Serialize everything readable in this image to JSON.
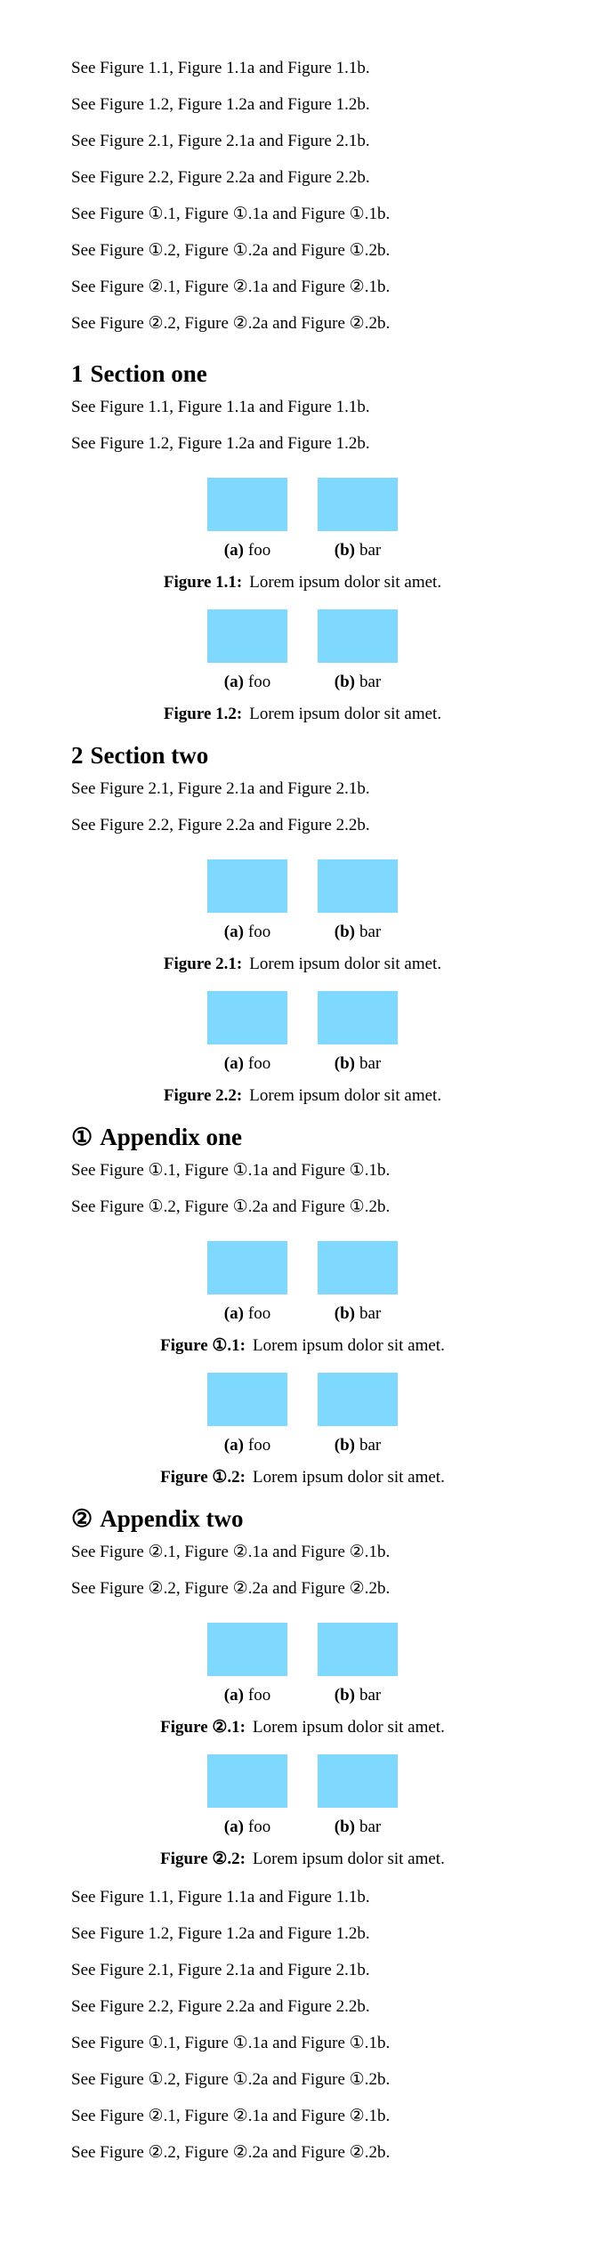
{
  "intro_refs": [
    "See Figure 1.1, Figure 1.1a and Figure 1.1b.",
    "See Figure 1.2, Figure 1.2a and Figure 1.2b.",
    "See Figure 2.1, Figure 2.1a and Figure 2.1b.",
    "See Figure 2.2, Figure 2.2a and Figure 2.2b.",
    "See Figure ①.1, Figure ①.1a and Figure ①.1b.",
    "See Figure ①.2, Figure ①.2a and Figure ①.2b.",
    "See Figure ②.1, Figure ②.1a and Figure ②.1b.",
    "See Figure ②.2, Figure ②.2a and Figure ②.2b."
  ],
  "sections": [
    {
      "num": "1",
      "title": "Section one",
      "refs": [
        "See Figure 1.1, Figure 1.1a and Figure 1.1b.",
        "See Figure 1.2, Figure 1.2a and Figure 1.2b."
      ],
      "figures": [
        {
          "label": "Figure 1.1:",
          "caption": "Lorem ipsum dolor sit amet.",
          "sub_a_label": "(a)",
          "sub_a_text": "foo",
          "sub_b_label": "(b)",
          "sub_b_text": "bar"
        },
        {
          "label": "Figure 1.2:",
          "caption": "Lorem ipsum dolor sit amet.",
          "sub_a_label": "(a)",
          "sub_a_text": "foo",
          "sub_b_label": "(b)",
          "sub_b_text": "bar"
        }
      ]
    },
    {
      "num": "2",
      "title": "Section two",
      "refs": [
        "See Figure 2.1, Figure 2.1a and Figure 2.1b.",
        "See Figure 2.2, Figure 2.2a and Figure 2.2b."
      ],
      "figures": [
        {
          "label": "Figure 2.1:",
          "caption": "Lorem ipsum dolor sit amet.",
          "sub_a_label": "(a)",
          "sub_a_text": "foo",
          "sub_b_label": "(b)",
          "sub_b_text": "bar"
        },
        {
          "label": "Figure 2.2:",
          "caption": "Lorem ipsum dolor sit amet.",
          "sub_a_label": "(a)",
          "sub_a_text": "foo",
          "sub_b_label": "(b)",
          "sub_b_text": "bar"
        }
      ]
    },
    {
      "num": "①",
      "title": "Appendix one",
      "refs": [
        "See Figure ①.1, Figure ①.1a and Figure ①.1b.",
        "See Figure ①.2, Figure ①.2a and Figure ①.2b."
      ],
      "figures": [
        {
          "label": "Figure ①.1:",
          "caption": "Lorem ipsum dolor sit amet.",
          "sub_a_label": "(a)",
          "sub_a_text": "foo",
          "sub_b_label": "(b)",
          "sub_b_text": "bar"
        },
        {
          "label": "Figure ①.2:",
          "caption": "Lorem ipsum dolor sit amet.",
          "sub_a_label": "(a)",
          "sub_a_text": "foo",
          "sub_b_label": "(b)",
          "sub_b_text": "bar"
        }
      ]
    },
    {
      "num": "②",
      "title": "Appendix two",
      "refs": [
        "See Figure ②.1, Figure ②.1a and Figure ②.1b.",
        "See Figure ②.2, Figure ②.2a and Figure ②.2b."
      ],
      "figures": [
        {
          "label": "Figure ②.1:",
          "caption": "Lorem ipsum dolor sit amet.",
          "sub_a_label": "(a)",
          "sub_a_text": "foo",
          "sub_b_label": "(b)",
          "sub_b_text": "bar"
        },
        {
          "label": "Figure ②.2:",
          "caption": "Lorem ipsum dolor sit amet.",
          "sub_a_label": "(a)",
          "sub_a_text": "foo",
          "sub_b_label": "(b)",
          "sub_b_text": "bar"
        }
      ]
    }
  ],
  "outro_refs": [
    "See Figure 1.1, Figure 1.1a and Figure 1.1b.",
    "See Figure 1.2, Figure 1.2a and Figure 1.2b.",
    "See Figure 2.1, Figure 2.1a and Figure 2.1b.",
    "See Figure 2.2, Figure 2.2a and Figure 2.2b.",
    "See Figure ①.1, Figure ①.1a and Figure ①.1b.",
    "See Figure ①.2, Figure ①.2a and Figure ①.2b.",
    "See Figure ②.1, Figure ②.1a and Figure ②.1b.",
    "See Figure ②.2, Figure ②.2a and Figure ②.2b."
  ],
  "colors": {
    "figure_box": "#7fd9ff",
    "text": "#000000",
    "background": "#ffffff"
  }
}
